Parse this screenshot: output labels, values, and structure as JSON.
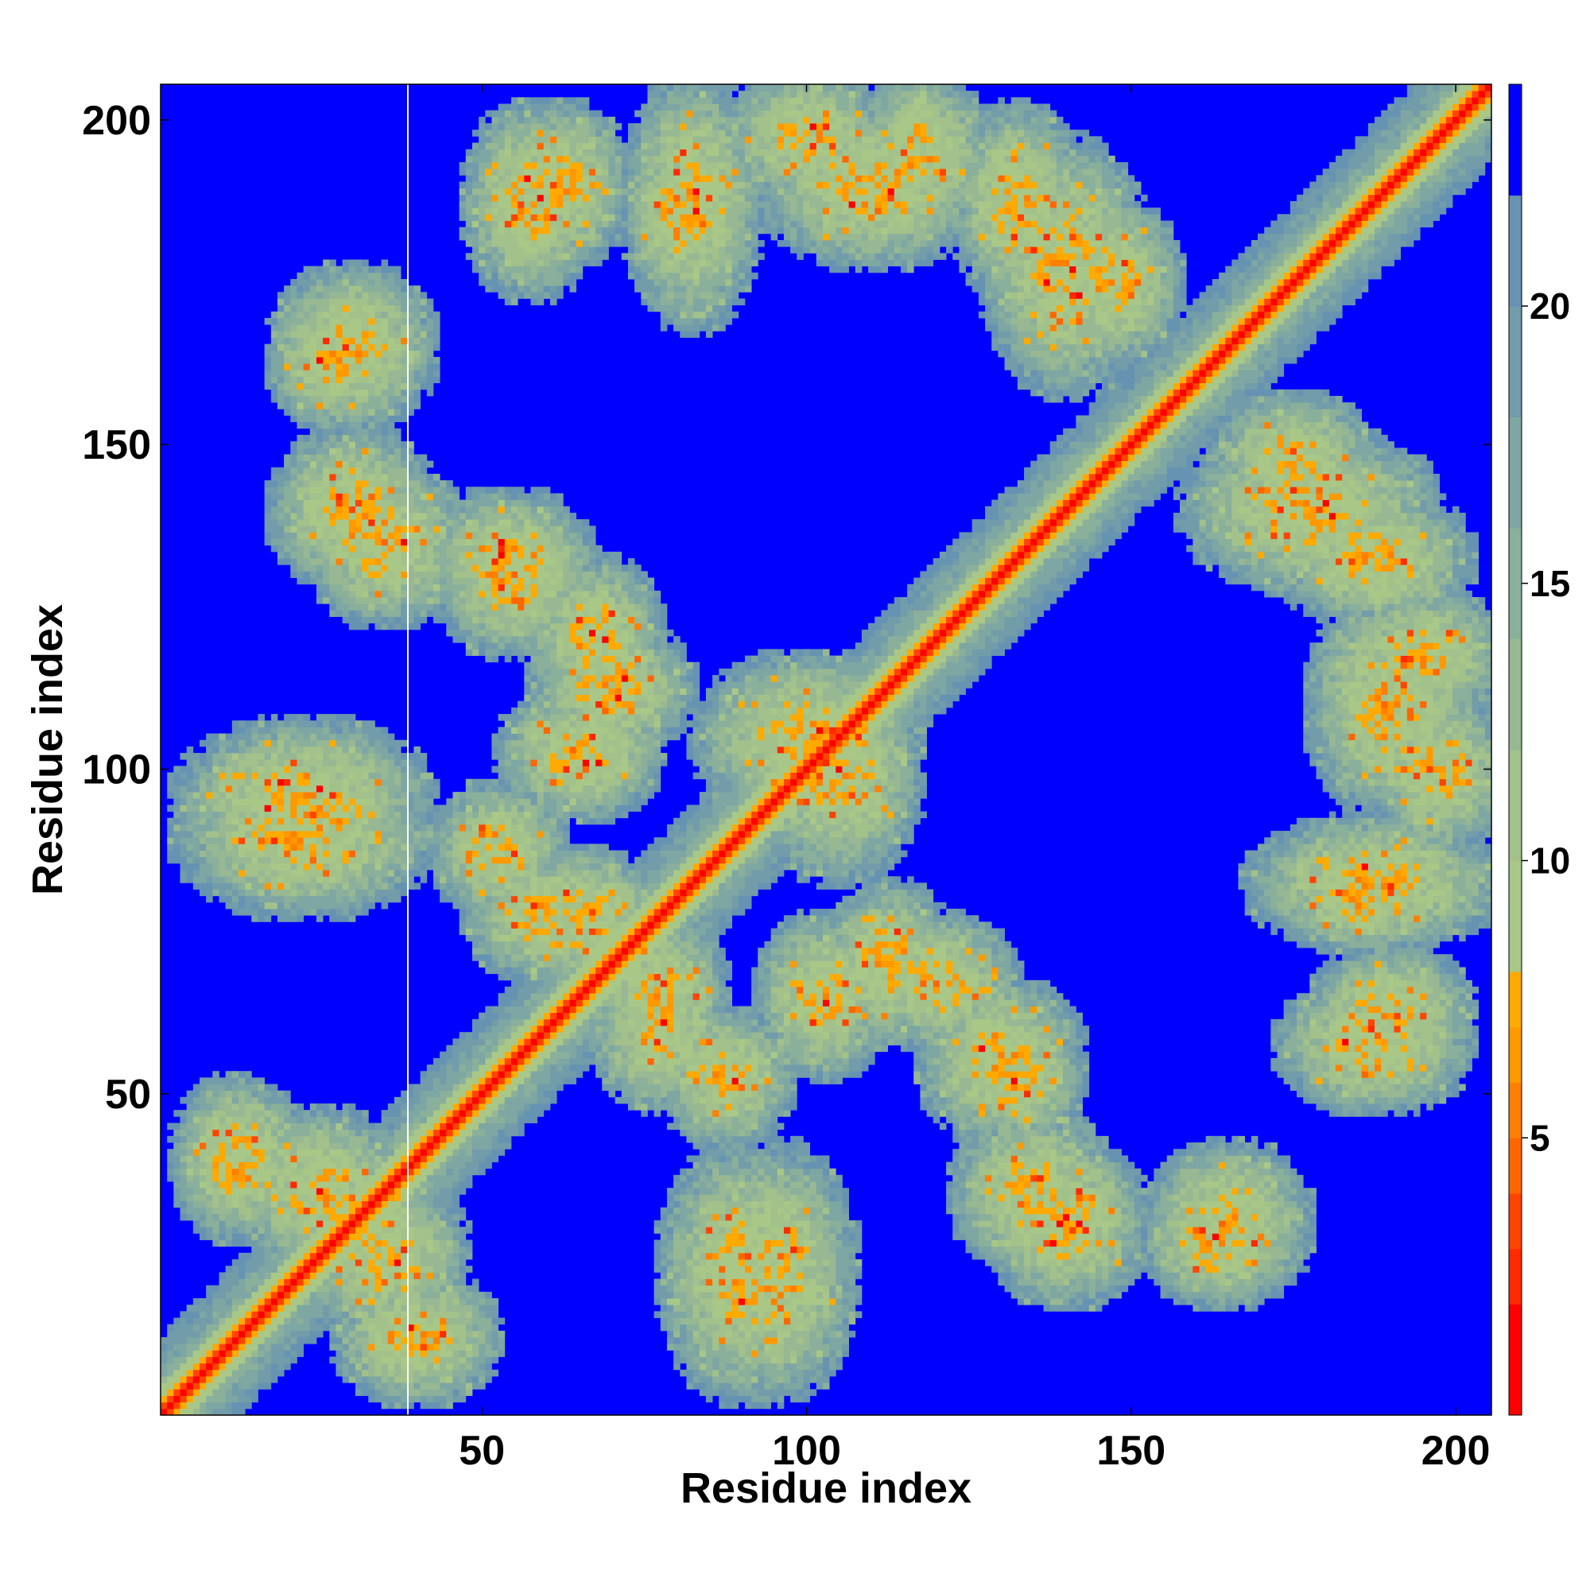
{
  "chart_data": {
    "type": "heatmap",
    "title": "",
    "xlabel": "Residue index",
    "ylabel": "Residue index",
    "n_residues": 205,
    "xlim": [
      1,
      205
    ],
    "ylim": [
      1,
      205
    ],
    "xticks": [
      50,
      100,
      150,
      200
    ],
    "yticks": [
      50,
      100,
      150,
      200
    ],
    "colorbar": {
      "range": [
        0,
        24
      ],
      "ticks": [
        5,
        10,
        15,
        20
      ],
      "bands": [
        {
          "from": 0,
          "to": 2,
          "color": "#ff0000"
        },
        {
          "from": 2,
          "to": 3,
          "color": "#ff2a00"
        },
        {
          "from": 3,
          "to": 4,
          "color": "#ff4400"
        },
        {
          "from": 4,
          "to": 5,
          "color": "#ff6600"
        },
        {
          "from": 5,
          "to": 6,
          "color": "#ff8000"
        },
        {
          "from": 6,
          "to": 7,
          "color": "#ff9900"
        },
        {
          "from": 7,
          "to": 8,
          "color": "#ffaa00"
        },
        {
          "from": 8,
          "to": 10,
          "color": "#a9c888"
        },
        {
          "from": 10,
          "to": 12,
          "color": "#a2c18b"
        },
        {
          "from": 12,
          "to": 14,
          "color": "#97b893"
        },
        {
          "from": 14,
          "to": 16,
          "color": "#8ab09b"
        },
        {
          "from": 16,
          "to": 18,
          "color": "#7ea6a3"
        },
        {
          "from": 18,
          "to": 20,
          "color": "#729ca9"
        },
        {
          "from": 20,
          "to": 22,
          "color": "#6693b1"
        },
        {
          "from": 22,
          "to": 24,
          "color": "#0000ff"
        }
      ]
    },
    "contact_regions": [
      {
        "x": [
          1,
          205
        ],
        "y": [
          1,
          205
        ],
        "kind": "diagonal"
      },
      {
        "x": [
          90,
          110
        ],
        "y": [
          190,
          205
        ]
      },
      {
        "x": [
          110,
          125
        ],
        "y": [
          185,
          205
        ]
      },
      {
        "x": [
          125,
          140
        ],
        "y": [
          175,
          200
        ]
      },
      {
        "x": [
          140,
          155
        ],
        "y": [
          165,
          185
        ]
      },
      {
        "x": [
          55,
          70
        ],
        "y": [
          180,
          200
        ]
      },
      {
        "x": [
          75,
          85
        ],
        "y": [
          175,
          195
        ]
      },
      {
        "x": [
          20,
          35
        ],
        "y": [
          155,
          170
        ]
      },
      {
        "x": [
          20,
          40
        ],
        "y": [
          130,
          150
        ]
      },
      {
        "x": [
          45,
          65
        ],
        "y": [
          120,
          140
        ]
      },
      {
        "x": [
          60,
          80
        ],
        "y": [
          105,
          120
        ]
      },
      {
        "x": [
          5,
          40
        ],
        "y": [
          85,
          105
        ]
      },
      {
        "x": [
          45,
          60
        ],
        "y": [
          80,
          95
        ]
      },
      {
        "x": [
          55,
          75
        ],
        "y": [
          70,
          85
        ]
      },
      {
        "x": [
          70,
          85
        ],
        "y": [
          50,
          70
        ]
      },
      {
        "x": [
          95,
          110
        ],
        "y": [
          55,
          75
        ]
      },
      {
        "x": [
          110,
          130
        ],
        "y": [
          60,
          75
        ]
      },
      {
        "x": [
          125,
          140
        ],
        "y": [
          45,
          60
        ]
      },
      {
        "x": [
          160,
          195
        ],
        "y": [
          130,
          150
        ]
      },
      {
        "x": [
          180,
          200
        ],
        "y": [
          95,
          125
        ]
      },
      {
        "x": [
          170,
          205
        ],
        "y": [
          75,
          90
        ]
      },
      {
        "x": [
          175,
          200
        ],
        "y": [
          50,
          65
        ]
      },
      {
        "x": [
          125,
          145
        ],
        "y": [
          25,
          45
        ]
      },
      {
        "x": [
          155,
          175
        ],
        "y": [
          20,
          40
        ]
      },
      {
        "x": [
          80,
          100
        ],
        "y": [
          5,
          40
        ]
      },
      {
        "x": [
          25,
          45
        ],
        "y": [
          15,
          35
        ]
      },
      {
        "x": [
          5,
          20
        ],
        "y": [
          30,
          50
        ]
      },
      {
        "x": [
          95,
          115
        ],
        "y": [
          85,
          115
        ]
      }
    ]
  }
}
